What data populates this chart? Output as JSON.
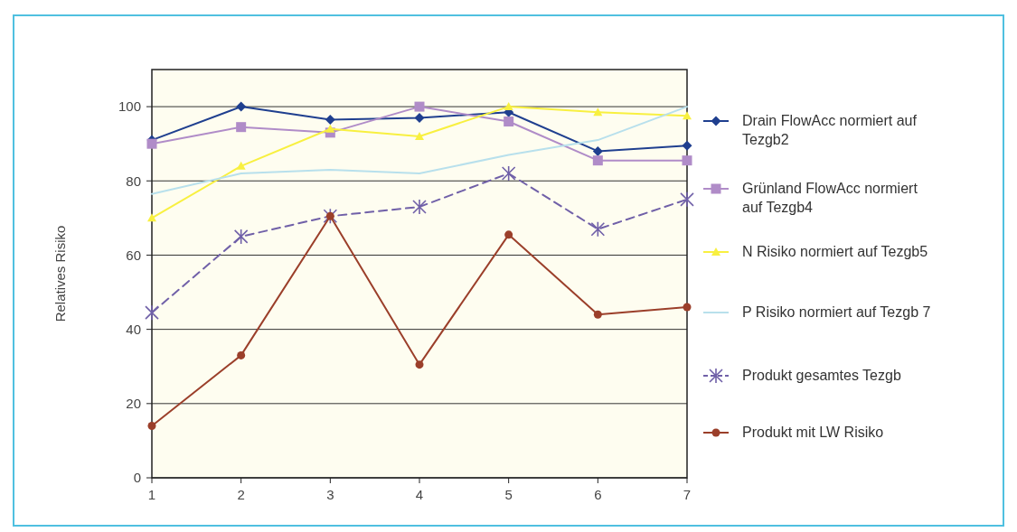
{
  "chart_data": {
    "type": "line",
    "ylabel": "Relatives Risiko",
    "x": [
      1,
      2,
      3,
      4,
      5,
      6,
      7
    ],
    "xlim": [
      1,
      7
    ],
    "xticks": [
      1,
      2,
      3,
      4,
      5,
      6,
      7
    ],
    "ylim": [
      0,
      110
    ],
    "yticks": [
      0,
      20,
      40,
      60,
      80,
      100
    ],
    "grid": "y",
    "legend": "right",
    "series": [
      {
        "name": "Drain FlowAcc normiert auf Tezgb2",
        "color": "#1f3f8f",
        "marker": "diamond",
        "values": [
          91,
          100,
          96.5,
          97,
          98.5,
          88,
          89.5
        ]
      },
      {
        "name": "Grünland FlowAcc normiert auf Tezgb4",
        "color": "#b08cc8",
        "marker": "square",
        "values": [
          90,
          94.5,
          93,
          100,
          96,
          85.5,
          85.5
        ]
      },
      {
        "name": "N Risiko normiert auf Tezgb5",
        "color": "#f8f040",
        "marker": "triangle",
        "values": [
          70,
          84,
          94,
          92,
          100,
          98.5,
          97.5
        ]
      },
      {
        "name": "P Risiko normiert auf Tezgb 7",
        "color": "#b8e0ec",
        "marker": "none",
        "values": [
          76.5,
          82,
          83,
          82,
          87,
          91,
          100
        ]
      },
      {
        "name": "Produkt gesamtes Tezgb",
        "color": "#7060a8",
        "marker": "cross",
        "line_style": "dashed",
        "values": [
          44.5,
          65,
          70.5,
          73,
          82,
          67,
          75
        ]
      },
      {
        "name": "Produkt mit LW Risiko",
        "color": "#9b3f2a",
        "marker": "circle",
        "values": [
          14,
          33,
          70.5,
          30.5,
          65.5,
          44,
          46
        ]
      }
    ]
  }
}
